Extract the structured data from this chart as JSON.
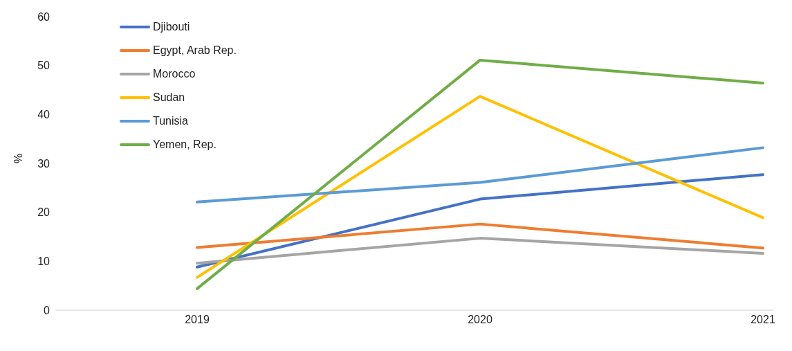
{
  "chart_data": {
    "type": "line",
    "ylabel": "%",
    "categories": [
      "2019",
      "2020",
      "2021"
    ],
    "ylim": [
      0,
      60
    ],
    "yticks": [
      0,
      10,
      20,
      30,
      40,
      50,
      60
    ],
    "grid": false,
    "legend": "top left",
    "marker": "none",
    "line_style": "solid",
    "series": [
      {
        "name": "Djibouti",
        "color": "#4472c4",
        "values": [
          8.8,
          22.7,
          27.7
        ]
      },
      {
        "name": "Egypt, Arab Rep.",
        "color": "#ed7d31",
        "values": [
          12.8,
          17.6,
          12.7
        ]
      },
      {
        "name": "Morocco",
        "color": "#a5a5a5",
        "values": [
          9.6,
          14.7,
          11.6
        ]
      },
      {
        "name": "Sudan",
        "color": "#ffc000",
        "values": [
          6.7,
          43.7,
          18.9
        ]
      },
      {
        "name": "Tunisia",
        "color": "#5b9bd5",
        "values": [
          22.1,
          26.1,
          33.2
        ]
      },
      {
        "name": "Yemen, Rep.",
        "color": "#70ad47",
        "values": [
          4.4,
          51.1,
          46.4
        ]
      }
    ]
  }
}
